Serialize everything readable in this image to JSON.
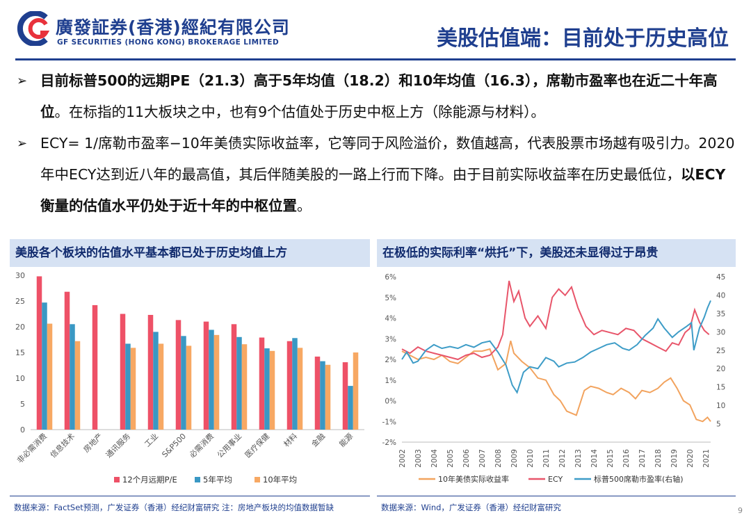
{
  "header": {
    "brand_cn": "廣發証券(香港)經紀有限公司",
    "brand_en": "GF SECURITIES (HONG KONG) BROKERAGE LIMITED",
    "title": "美股估值端：目前处于历史高位",
    "brand_color": "#1f3f8f",
    "accent_color": "#e8323c"
  },
  "bullets": [
    {
      "arrow": "➢",
      "parts": [
        {
          "text": "目前标普500的远期PE（21.3）高于5年均值（18.2）和10年均值（16.3），席勒市盈率也在近二十年高位",
          "bold": true
        },
        {
          "text": "。在标指的11大板块之中，也有9个估值处于历史中枢上方（除能源与材料）。",
          "bold": false
        }
      ]
    },
    {
      "arrow": "➢",
      "parts": [
        {
          "text": "ECY= 1/席勒市盈率−10年美债实际收益率，它等同于风险溢价，数值越高，代表股票市场越有吸引力。2020年中ECY达到近八年的最高值，其后伴随美股的一路上行而下降。由于目前实际收益率在历史最低位，",
          "bold": false
        },
        {
          "text": "以ECY衡量的估值水平仍处于近十年的中枢位置",
          "bold": true
        },
        {
          "text": "。",
          "bold": false
        }
      ]
    }
  ],
  "left_panel": {
    "title": "美股各个板块的估值水平基本都已处于历史均值上方",
    "source": "数据来源：FactSet预测，广发证券（香港）经纪财富研究  注：房地产板块的均值数据暂缺"
  },
  "right_panel": {
    "title": "在极低的实际利率“烘托”下，美股还未显得过于昂贵",
    "source": "数据来源：Wind，广发证券（香港）经纪财富研究"
  },
  "page_number": "9",
  "chart_data": [
    {
      "type": "bar",
      "title": "",
      "categories": [
        "非必需消费",
        "信息技术",
        "房地产",
        "通讯服务",
        "工业",
        "S&P500",
        "必需消费",
        "公用事业",
        "医疗保健",
        "材料",
        "金融",
        "能源"
      ],
      "series": [
        {
          "name": "12个月远期P/E",
          "color": "#ee5167",
          "values": [
            29.8,
            26.8,
            24.2,
            22.5,
            22.3,
            21.3,
            21.0,
            20.5,
            17.9,
            17.2,
            14.2,
            13.1
          ]
        },
        {
          "name": "5年平均",
          "color": "#3a98c4",
          "values": [
            24.7,
            20.5,
            null,
            16.7,
            19.0,
            18.2,
            19.4,
            18.0,
            15.8,
            17.8,
            13.3,
            8.5
          ]
        },
        {
          "name": "10年平均",
          "color": "#f7a863",
          "values": [
            20.6,
            17.2,
            null,
            15.9,
            16.7,
            16.3,
            18.4,
            16.6,
            15.3,
            15.9,
            12.6,
            15.0
          ]
        }
      ],
      "ylim": [
        0,
        30
      ],
      "yticks": [
        "0",
        "5",
        "10",
        "15",
        "20",
        "25",
        "30"
      ],
      "legend": "bottom"
    },
    {
      "type": "line",
      "title": "",
      "xticks": [
        "2002",
        "2003",
        "2004",
        "2005",
        "2006",
        "2007",
        "2008",
        "2009",
        "2010",
        "2011",
        "2012",
        "2013",
        "2014",
        "2015",
        "2016",
        "2017",
        "2018",
        "2019",
        "2020",
        "2021"
      ],
      "xlim": [
        2002,
        2021.3
      ],
      "y_left_ticks": [
        "-2%",
        "-1%",
        "0%",
        "1%",
        "2%",
        "3%",
        "4%",
        "5%",
        "6%"
      ],
      "y_left_lim": [
        -2,
        6
      ],
      "y_right_ticks": [
        "5",
        "10",
        "15",
        "20",
        "25",
        "30",
        "35",
        "40",
        "45"
      ],
      "y_right_lim": [
        0,
        45
      ],
      "legend": "bottom",
      "series": [
        {
          "name": "10年美债实际收益率",
          "axis": "left",
          "color": "#f2a35e",
          "points": [
            [
              2002.0,
              2.4
            ],
            [
              2002.5,
              2.2
            ],
            [
              2003.0,
              2.0
            ],
            [
              2003.5,
              2.1
            ],
            [
              2004.0,
              2.0
            ],
            [
              2004.5,
              2.2
            ],
            [
              2005.0,
              1.9
            ],
            [
              2005.5,
              1.8
            ],
            [
              2006.0,
              2.1
            ],
            [
              2006.5,
              2.4
            ],
            [
              2007.0,
              2.4
            ],
            [
              2007.5,
              2.5
            ],
            [
              2008.0,
              1.5
            ],
            [
              2008.5,
              1.8
            ],
            [
              2008.8,
              2.9
            ],
            [
              2009.0,
              2.3
            ],
            [
              2009.5,
              1.9
            ],
            [
              2010.0,
              1.6
            ],
            [
              2010.5,
              1.1
            ],
            [
              2011.0,
              1.0
            ],
            [
              2011.5,
              0.3
            ],
            [
              2011.9,
              0.0
            ],
            [
              2012.3,
              -0.5
            ],
            [
              2012.9,
              -0.7
            ],
            [
              2013.4,
              0.5
            ],
            [
              2013.8,
              0.7
            ],
            [
              2014.3,
              0.6
            ],
            [
              2014.8,
              0.4
            ],
            [
              2015.2,
              0.3
            ],
            [
              2015.7,
              0.6
            ],
            [
              2016.2,
              0.4
            ],
            [
              2016.6,
              0.1
            ],
            [
              2017.0,
              0.5
            ],
            [
              2017.5,
              0.4
            ],
            [
              2018.0,
              0.6
            ],
            [
              2018.4,
              0.9
            ],
            [
              2018.8,
              1.1
            ],
            [
              2019.2,
              0.6
            ],
            [
              2019.6,
              0.0
            ],
            [
              2020.0,
              -0.2
            ],
            [
              2020.4,
              -0.9
            ],
            [
              2020.8,
              -1.0
            ],
            [
              2021.1,
              -0.8
            ],
            [
              2021.3,
              -1.0
            ]
          ]
        },
        {
          "name": "ECY",
          "axis": "left",
          "color": "#e8556a",
          "points": [
            [
              2002.0,
              2.5
            ],
            [
              2002.5,
              2.3
            ],
            [
              2003.0,
              2.6
            ],
            [
              2003.5,
              2.4
            ],
            [
              2004.0,
              2.3
            ],
            [
              2004.5,
              2.2
            ],
            [
              2005.0,
              2.1
            ],
            [
              2005.5,
              2.0
            ],
            [
              2006.0,
              2.2
            ],
            [
              2006.5,
              2.3
            ],
            [
              2007.0,
              2.1
            ],
            [
              2007.5,
              2.2
            ],
            [
              2008.0,
              2.6
            ],
            [
              2008.3,
              3.2
            ],
            [
              2008.7,
              5.8
            ],
            [
              2009.0,
              4.8
            ],
            [
              2009.3,
              5.3
            ],
            [
              2009.7,
              4.0
            ],
            [
              2010.0,
              3.6
            ],
            [
              2010.5,
              4.1
            ],
            [
              2011.0,
              3.5
            ],
            [
              2011.4,
              5.0
            ],
            [
              2011.8,
              5.4
            ],
            [
              2012.2,
              5.1
            ],
            [
              2012.6,
              5.5
            ],
            [
              2013.0,
              4.5
            ],
            [
              2013.5,
              3.6
            ],
            [
              2014.0,
              3.2
            ],
            [
              2014.5,
              3.4
            ],
            [
              2015.0,
              3.3
            ],
            [
              2015.5,
              3.2
            ],
            [
              2016.0,
              3.5
            ],
            [
              2016.5,
              3.4
            ],
            [
              2017.0,
              3.0
            ],
            [
              2017.5,
              2.8
            ],
            [
              2018.0,
              2.6
            ],
            [
              2018.5,
              2.4
            ],
            [
              2018.9,
              2.8
            ],
            [
              2019.3,
              2.7
            ],
            [
              2019.7,
              3.3
            ],
            [
              2020.0,
              3.5
            ],
            [
              2020.3,
              4.4
            ],
            [
              2020.6,
              3.8
            ],
            [
              2020.9,
              3.4
            ],
            [
              2021.2,
              3.2
            ]
          ]
        },
        {
          "name": "标普500席勒市盈率(右轴)",
          "axis": "right",
          "color": "#3d9cc7",
          "points": [
            [
              2002.0,
              22.5
            ],
            [
              2002.3,
              24.5
            ],
            [
              2002.7,
              21.5
            ],
            [
              2003.0,
              22.0
            ],
            [
              2003.5,
              25.0
            ],
            [
              2004.0,
              26.5
            ],
            [
              2004.5,
              25.5
            ],
            [
              2005.0,
              26.0
            ],
            [
              2005.5,
              25.5
            ],
            [
              2006.0,
              26.5
            ],
            [
              2006.5,
              25.8
            ],
            [
              2007.0,
              27.0
            ],
            [
              2007.5,
              27.5
            ],
            [
              2008.0,
              24.5
            ],
            [
              2008.5,
              21.0
            ],
            [
              2008.9,
              15.5
            ],
            [
              2009.2,
              13.5
            ],
            [
              2009.6,
              19.0
            ],
            [
              2010.0,
              20.5
            ],
            [
              2010.5,
              20.0
            ],
            [
              2011.0,
              23.0
            ],
            [
              2011.5,
              22.0
            ],
            [
              2011.8,
              20.5
            ],
            [
              2012.3,
              21.5
            ],
            [
              2012.8,
              21.8
            ],
            [
              2013.3,
              23.0
            ],
            [
              2013.8,
              24.5
            ],
            [
              2014.3,
              25.5
            ],
            [
              2014.8,
              26.5
            ],
            [
              2015.3,
              27.0
            ],
            [
              2015.8,
              25.5
            ],
            [
              2016.2,
              25.0
            ],
            [
              2016.7,
              26.5
            ],
            [
              2017.2,
              29.0
            ],
            [
              2017.7,
              31.0
            ],
            [
              2018.0,
              33.5
            ],
            [
              2018.4,
              31.0
            ],
            [
              2018.9,
              28.5
            ],
            [
              2019.3,
              30.0
            ],
            [
              2019.8,
              31.5
            ],
            [
              2020.1,
              32.5
            ],
            [
              2020.25,
              25.0
            ],
            [
              2020.6,
              31.0
            ],
            [
              2020.9,
              34.0
            ],
            [
              2021.1,
              36.5
            ],
            [
              2021.3,
              38.5
            ]
          ]
        }
      ]
    }
  ]
}
